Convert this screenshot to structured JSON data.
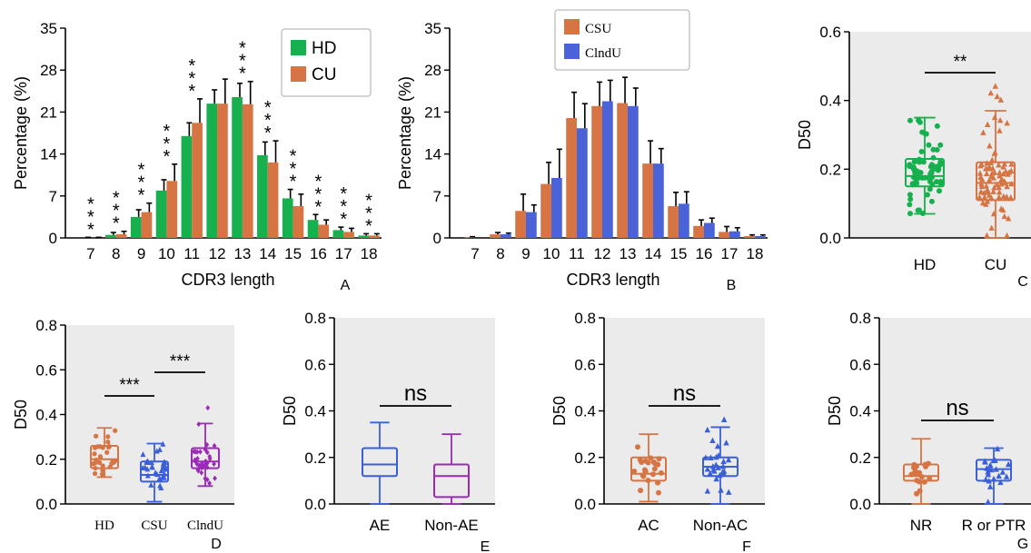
{
  "colors": {
    "HD_green": "#16b04f",
    "CU_orange": "#d67444",
    "CSU_orange": "#d67444",
    "ClndU_blue": "#4a63d8",
    "blue_box": "#3a5fd8",
    "purple": "#9b2ab4",
    "panel_bg": "#ebebeb"
  },
  "chart_data": [
    {
      "panel": "A",
      "type": "bar",
      "xlabel": "CDR3 length",
      "ylabel": "Percentage (%)",
      "ylim": [
        0,
        35
      ],
      "yticks": [
        "0",
        "7",
        "14",
        "21",
        "28",
        "35"
      ],
      "categories": [
        "7",
        "8",
        "9",
        "10",
        "11",
        "12",
        "13",
        "14",
        "15",
        "16",
        "17",
        "18"
      ],
      "series": [
        {
          "name": "HD",
          "values": [
            0.0,
            0.5,
            3.5,
            7.9,
            17.0,
            22.4,
            23.5,
            13.8,
            6.6,
            3.0,
            1.3,
            0.4
          ],
          "errors": [
            0.1,
            0.4,
            1.2,
            1.8,
            2.2,
            2.3,
            2.3,
            2.2,
            1.5,
            0.9,
            0.5,
            0.3
          ]
        },
        {
          "name": "CU",
          "values": [
            0.0,
            0.6,
            4.3,
            9.5,
            19.2,
            22.4,
            22.3,
            12.6,
            5.3,
            2.2,
            1.0,
            0.4
          ],
          "errors": [
            0.1,
            0.5,
            1.5,
            2.8,
            4.0,
            4.1,
            3.8,
            3.6,
            2.0,
            0.8,
            0.6,
            0.3
          ]
        }
      ],
      "significance": [
        "***",
        "***",
        "***",
        "***",
        "***",
        "",
        "***",
        "***",
        "***",
        "***",
        "***",
        "***"
      ],
      "legend_position": "top-right",
      "corner_label": "A"
    },
    {
      "panel": "B",
      "type": "bar",
      "xlabel": "CDR3 length",
      "ylabel": "Percentage (%)",
      "ylim": [
        0,
        35
      ],
      "yticks": [
        "0",
        "7",
        "14",
        "21",
        "28",
        "35"
      ],
      "categories": [
        "7",
        "8",
        "9",
        "10",
        "11",
        "12",
        "13",
        "14",
        "15",
        "16",
        "17",
        "18"
      ],
      "series": [
        {
          "name": "CSU",
          "values": [
            0.1,
            0.6,
            4.5,
            9.0,
            20.0,
            22.0,
            22.5,
            12.4,
            5.3,
            2.0,
            1.0,
            0.3
          ],
          "errors": [
            0.1,
            0.3,
            2.8,
            3.6,
            4.3,
            4.0,
            4.3,
            3.8,
            2.3,
            1.0,
            0.9,
            0.2
          ]
        },
        {
          "name": "ClndU",
          "values": [
            0.0,
            0.6,
            4.3,
            10.0,
            18.3,
            22.8,
            22.0,
            12.4,
            5.7,
            2.5,
            1.1,
            0.3
          ],
          "errors": [
            0.0,
            0.2,
            1.2,
            4.8,
            4.1,
            3.5,
            3.0,
            2.5,
            2.0,
            0.8,
            0.6,
            0.2
          ]
        }
      ],
      "legend_position": "top",
      "corner_label": "B"
    },
    {
      "panel": "C",
      "type": "box",
      "ylabel": "D50",
      "ylim": [
        0,
        0.6
      ],
      "yticks": [
        "0.0",
        "0.2",
        "0.4",
        "0.6"
      ],
      "categories": [
        "HD",
        "CU"
      ],
      "boxes": [
        {
          "name": "HD",
          "min": 0.07,
          "q1": 0.15,
          "median": 0.18,
          "q3": 0.23,
          "max": 0.35
        },
        {
          "name": "CU",
          "min": 0.0,
          "q1": 0.11,
          "median": 0.16,
          "q3": 0.22,
          "max": 0.37
        }
      ],
      "outliers": {
        "CU": [
          0.4,
          0.41,
          0.42,
          0.44
        ]
      },
      "significance": [
        {
          "between": [
            "HD",
            "CU"
          ],
          "label": "**"
        }
      ],
      "corner_label": "C"
    },
    {
      "panel": "D",
      "type": "box",
      "ylabel": "D50",
      "ylim": [
        0,
        0.8
      ],
      "yticks": [
        "0.0",
        "0.2",
        "0.4",
        "0.6",
        "0.8"
      ],
      "categories": [
        "HD",
        "CSU",
        "ClndU"
      ],
      "boxes": [
        {
          "name": "HD",
          "min": 0.12,
          "q1": 0.16,
          "median": 0.2,
          "q3": 0.26,
          "max": 0.34
        },
        {
          "name": "CSU",
          "min": 0.01,
          "q1": 0.1,
          "median": 0.13,
          "q3": 0.19,
          "max": 0.27
        },
        {
          "name": "ClndU",
          "min": 0.08,
          "q1": 0.16,
          "median": 0.19,
          "q3": 0.25,
          "max": 0.36
        }
      ],
      "outliers": {
        "ClndU": [
          0.43
        ]
      },
      "significance": [
        {
          "between": [
            "HD",
            "CSU"
          ],
          "label": "***"
        },
        {
          "between": [
            "CSU",
            "ClndU"
          ],
          "label": "***"
        }
      ],
      "corner_label": "D"
    },
    {
      "panel": "E",
      "type": "box",
      "ylabel": "D50",
      "ylim": [
        0,
        0.8
      ],
      "yticks": [
        "0.0",
        "0.2",
        "0.4",
        "0.6",
        "0.8"
      ],
      "categories": [
        "AE",
        "Non-AE"
      ],
      "boxes": [
        {
          "name": "AE",
          "min": 0.0,
          "q1": 0.12,
          "median": 0.17,
          "q3": 0.24,
          "max": 0.35
        },
        {
          "name": "Non-AE",
          "min": 0.0,
          "q1": 0.03,
          "median": 0.12,
          "q3": 0.17,
          "max": 0.3
        }
      ],
      "significance": [
        {
          "between": [
            "AE",
            "Non-AE"
          ],
          "label": "ns"
        }
      ],
      "corner_label": "E"
    },
    {
      "panel": "F",
      "type": "box",
      "ylabel": "D50",
      "ylim": [
        0,
        0.8
      ],
      "yticks": [
        "0.0",
        "0.2",
        "0.4",
        "0.6",
        "0.8"
      ],
      "categories": [
        "AC",
        "Non-AC"
      ],
      "boxes": [
        {
          "name": "AC",
          "min": 0.01,
          "q1": 0.1,
          "median": 0.13,
          "q3": 0.2,
          "max": 0.3
        },
        {
          "name": "Non-AC",
          "min": 0.0,
          "q1": 0.12,
          "median": 0.16,
          "q3": 0.2,
          "max": 0.33
        }
      ],
      "outliers": {
        "Non-AC": [
          0.36
        ]
      },
      "significance": [
        {
          "between": [
            "AC",
            "Non-AC"
          ],
          "label": "ns"
        }
      ],
      "corner_label": "F"
    },
    {
      "panel": "G",
      "type": "box",
      "ylabel": "D50",
      "ylim": [
        0,
        0.8
      ],
      "yticks": [
        "0.0",
        "0.2",
        "0.4",
        "0.6",
        "0.8"
      ],
      "categories": [
        "NR",
        "R or PTR"
      ],
      "boxes": [
        {
          "name": "NR",
          "min": 0.0,
          "q1": 0.1,
          "median": 0.12,
          "q3": 0.17,
          "max": 0.28
        },
        {
          "name": "R or PTR",
          "min": 0.0,
          "q1": 0.1,
          "median": 0.15,
          "q3": 0.19,
          "max": 0.24
        }
      ],
      "significance": [
        {
          "between": [
            "NR",
            "R or PTR"
          ],
          "label": "ns"
        }
      ],
      "corner_label": "G"
    }
  ]
}
